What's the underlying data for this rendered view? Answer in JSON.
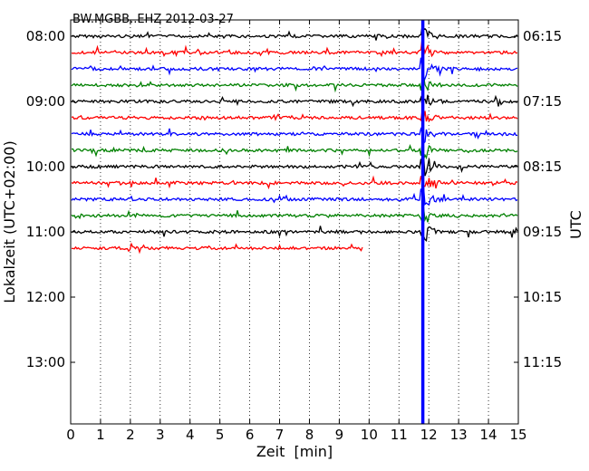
{
  "chart_data": {
    "type": "line",
    "title": "BW.MGBB..EHZ 2012-03-27",
    "xlabel": "Zeit  [min]",
    "ylabel_left": "Lokalzeit (UTC+02:00)",
    "ylabel_right": "UTC",
    "xlim": [
      0,
      15
    ],
    "x_ticks": [
      "0",
      "1",
      "2",
      "3",
      "4",
      "5",
      "6",
      "7",
      "8",
      "9",
      "10",
      "11",
      "12",
      "13",
      "14",
      "15"
    ],
    "left_ticks": [
      "08:00",
      "09:00",
      "10:00",
      "11:00",
      "12:00",
      "13:00"
    ],
    "right_ticks": [
      "06:15",
      "07:15",
      "08:15",
      "09:15",
      "10:15",
      "11:15"
    ],
    "rows_per_hour": 4,
    "grid": "vertical dotted",
    "color_cycle": [
      "#000000",
      "#ff0000",
      "#0000ff",
      "#008000"
    ],
    "traces": [
      {
        "start": "08:00",
        "end_min": 15
      },
      {
        "start": "08:15",
        "end_min": 15
      },
      {
        "start": "08:30",
        "end_min": 15
      },
      {
        "start": "08:45",
        "end_min": 15
      },
      {
        "start": "09:00",
        "end_min": 15
      },
      {
        "start": "09:15",
        "end_min": 15
      },
      {
        "start": "09:30",
        "end_min": 15
      },
      {
        "start": "09:45",
        "end_min": 15
      },
      {
        "start": "10:00",
        "end_min": 15
      },
      {
        "start": "10:15",
        "end_min": 15
      },
      {
        "start": "10:30",
        "end_min": 15
      },
      {
        "start": "10:45",
        "end_min": 15
      },
      {
        "start": "11:00",
        "end_min": 15
      },
      {
        "start": "11:15",
        "end_min": 9.8
      }
    ],
    "event": {
      "minute": 11.8,
      "color": "#0000ff"
    }
  }
}
